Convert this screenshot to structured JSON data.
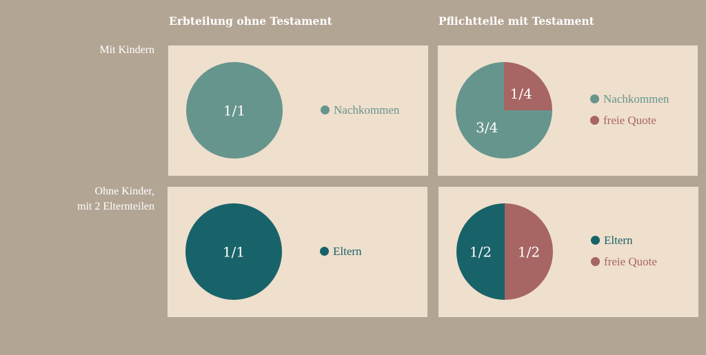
{
  "colors": {
    "nachkommen": "#66958d",
    "eltern": "#186369",
    "freie_quote": "#a76563",
    "panel_bg": "#efdfcd",
    "page_bg": "#b3a594"
  },
  "columns": [
    {
      "title": "Erbteilung ohne Testament"
    },
    {
      "title": "Pflichtteile mit Testament"
    }
  ],
  "rows": [
    {
      "label_lines": [
        "Mit Kindern"
      ]
    },
    {
      "label_lines": [
        "Ohne Kinder,",
        "mit 2 Elternteilen"
      ]
    }
  ],
  "chart_data": [
    {
      "type": "pie",
      "title": "Erbteilung ohne Testament",
      "row": "Mit Kindern",
      "slices": [
        {
          "name": "Nachkommen",
          "value": 1.0,
          "label": "1/1",
          "color": "#66958d"
        }
      ],
      "legend": [
        "Nachkommen"
      ],
      "legend_position": "right"
    },
    {
      "type": "pie",
      "title": "Pflichtteile mit Testament",
      "row": "Mit Kindern",
      "slices": [
        {
          "name": "Nachkommen",
          "value": 0.75,
          "label": "3/4",
          "color": "#66958d"
        },
        {
          "name": "freie Quote",
          "value": 0.25,
          "label": "1/4",
          "color": "#a76563"
        }
      ],
      "legend": [
        "Nachkommen",
        "freie Quote"
      ],
      "legend_position": "right"
    },
    {
      "type": "pie",
      "title": "Erbteilung ohne Testament",
      "row": "Ohne Kinder, mit 2 Elternteilen",
      "slices": [
        {
          "name": "Eltern",
          "value": 1.0,
          "label": "1/1",
          "color": "#186369"
        }
      ],
      "legend": [
        "Eltern"
      ],
      "legend_position": "right"
    },
    {
      "type": "pie",
      "title": "Pflichtteile mit Testament",
      "row": "Ohne Kinder, mit 2 Elternteilen",
      "slices": [
        {
          "name": "Eltern",
          "value": 0.5,
          "label": "1/2",
          "color": "#186369"
        },
        {
          "name": "freie Quote",
          "value": 0.5,
          "label": "1/2",
          "color": "#a76563"
        }
      ],
      "legend": [
        "Eltern",
        "freie Quote"
      ],
      "legend_position": "right"
    }
  ]
}
